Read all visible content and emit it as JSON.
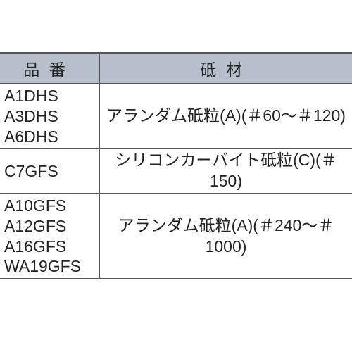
{
  "table": {
    "header_bg": "#b7c0ca",
    "border_color": "#555555",
    "text_color": "#222222",
    "font_size": 23,
    "columns": {
      "code": "品番",
      "material": "砥材"
    },
    "rows": [
      {
        "codes": [
          "A1DHS",
          "A3DHS",
          "A6DHS"
        ],
        "material": "アランダム砥粒(A)(＃60～＃120)"
      },
      {
        "codes": [
          "C7GFS"
        ],
        "material": "シリコンカーバイト砥粒(C)(＃150)"
      },
      {
        "codes": [
          "A10GFS",
          "A12GFS",
          "A16GFS",
          "WA19GFS"
        ],
        "material": "アランダム砥粒(A)(＃240～＃1000)"
      }
    ]
  }
}
